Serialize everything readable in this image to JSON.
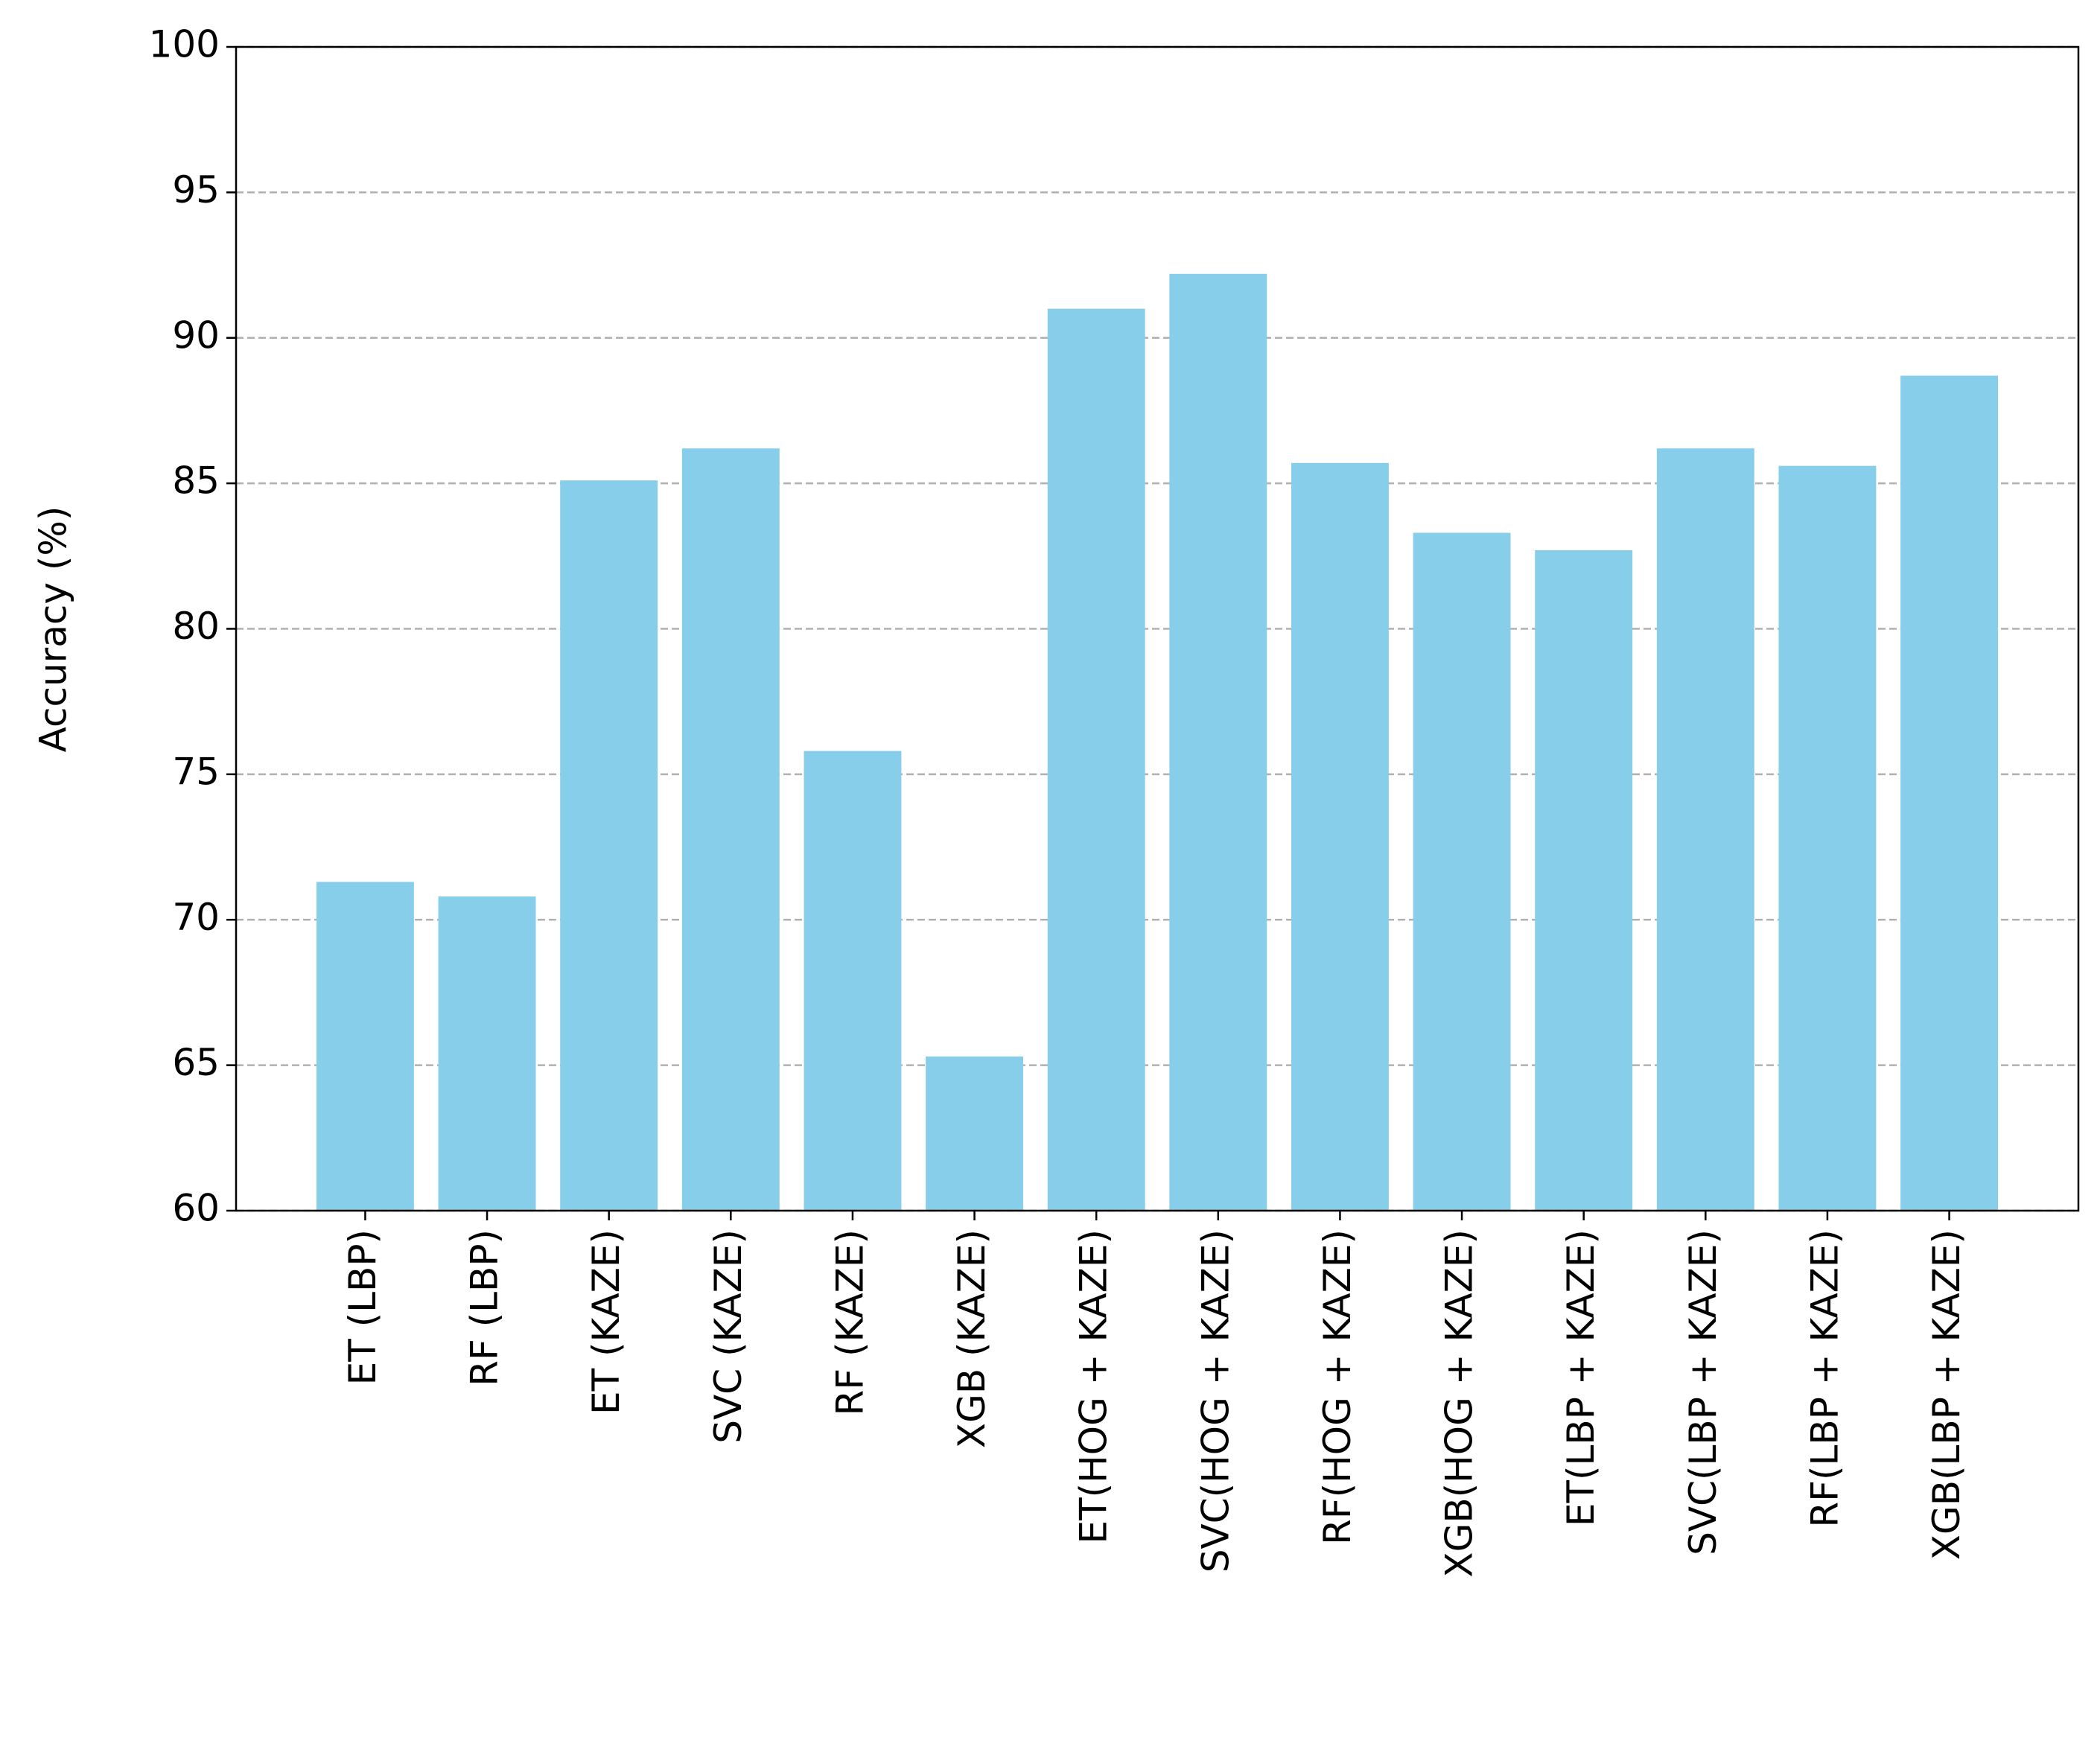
{
  "chart_data": {
    "type": "bar",
    "y_label": "Accuracy (%)",
    "categories": [
      "ET (LBP)",
      "RF (LBP)",
      "ET (KAZE)",
      "SVC (KAZE)",
      "RF (KAZE)",
      "XGB (KAZE)",
      "ET(HOG + KAZE)",
      "SVC(HOG + KAZE)",
      "RF(HOG + KAZE)",
      "XGB(HOG + KAZE)",
      "ET(LBP + KAZE)",
      "SVC(LBP + KAZE)",
      "RF(LBP + KAZE)",
      "XGB(LBP + KAZE)"
    ],
    "values": [
      71.3,
      70.8,
      85.1,
      86.2,
      75.8,
      65.3,
      91.0,
      92.2,
      85.7,
      83.3,
      82.7,
      86.2,
      85.6,
      88.7
    ],
    "color": "#87ceeb",
    "ylim": [
      60,
      100
    ],
    "yticks": [
      60,
      65,
      70,
      75,
      80,
      85,
      90,
      95,
      100
    ],
    "grid": true
  }
}
